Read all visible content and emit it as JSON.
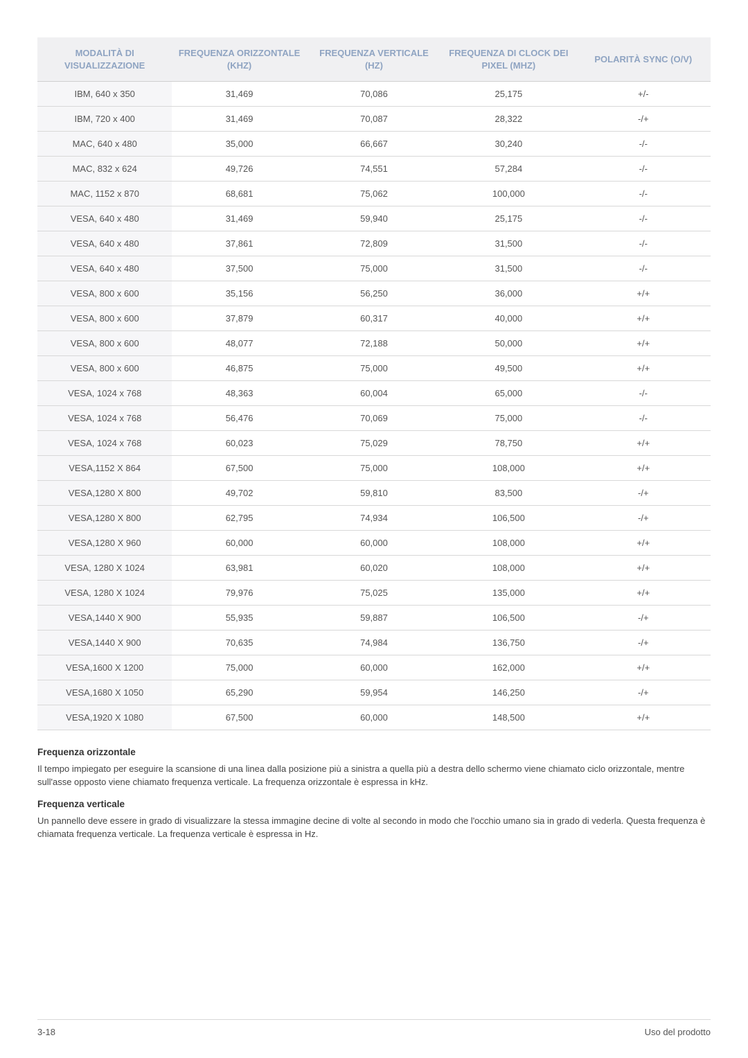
{
  "table": {
    "columns": [
      "MODALITÀ DI VISUALIZZAZIONE",
      "FREQUENZA ORIZZONTALE (KHZ)",
      "FREQUENZA VERTICALE (HZ)",
      "FREQUENZA DI CLOCK DEI PIXEL (MHZ)",
      "POLARITÀ SYNC (O/V)"
    ],
    "header_text_color": "#8fa4c2",
    "header_bg_color": "#f0f0f2",
    "row_first_col_bg": "#f6f6f8",
    "border_color": "#d8d8d8",
    "rows": [
      [
        "IBM, 640 x 350",
        "31,469",
        "70,086",
        "25,175",
        "+/-"
      ],
      [
        "IBM, 720 x 400",
        "31,469",
        "70,087",
        "28,322",
        "-/+"
      ],
      [
        "MAC, 640 x 480",
        "35,000",
        "66,667",
        "30,240",
        "-/-"
      ],
      [
        "MAC, 832 x 624",
        "49,726",
        "74,551",
        "57,284",
        "-/-"
      ],
      [
        "MAC, 1152 x 870",
        "68,681",
        "75,062",
        "100,000",
        "-/-"
      ],
      [
        "VESA, 640 x 480",
        "31,469",
        "59,940",
        "25,175",
        "-/-"
      ],
      [
        "VESA, 640 x 480",
        "37,861",
        "72,809",
        "31,500",
        "-/-"
      ],
      [
        "VESA, 640 x 480",
        "37,500",
        "75,000",
        "31,500",
        "-/-"
      ],
      [
        "VESA, 800 x 600",
        "35,156",
        "56,250",
        "36,000",
        "+/+"
      ],
      [
        "VESA, 800 x 600",
        "37,879",
        "60,317",
        "40,000",
        "+/+"
      ],
      [
        "VESA, 800 x 600",
        "48,077",
        "72,188",
        "50,000",
        "+/+"
      ],
      [
        "VESA, 800 x 600",
        "46,875",
        "75,000",
        "49,500",
        "+/+"
      ],
      [
        "VESA, 1024 x 768",
        "48,363",
        "60,004",
        "65,000",
        "-/-"
      ],
      [
        "VESA, 1024 x 768",
        "56,476",
        "70,069",
        "75,000",
        "-/-"
      ],
      [
        "VESA, 1024 x 768",
        "60,023",
        "75,029",
        "78,750",
        "+/+"
      ],
      [
        "VESA,1152 X 864",
        "67,500",
        "75,000",
        "108,000",
        "+/+"
      ],
      [
        "VESA,1280 X 800",
        "49,702",
        "59,810",
        "83,500",
        "-/+"
      ],
      [
        "VESA,1280 X 800",
        "62,795",
        "74,934",
        "106,500",
        "-/+"
      ],
      [
        "VESA,1280 X 960",
        "60,000",
        "60,000",
        "108,000",
        "+/+"
      ],
      [
        "VESA, 1280 X 1024",
        "63,981",
        "60,020",
        "108,000",
        "+/+"
      ],
      [
        "VESA, 1280 X 1024",
        "79,976",
        "75,025",
        "135,000",
        "+/+"
      ],
      [
        "VESA,1440 X 900",
        "55,935",
        "59,887",
        "106,500",
        "-/+"
      ],
      [
        "VESA,1440 X 900",
        "70,635",
        "74,984",
        "136,750",
        "-/+"
      ],
      [
        "VESA,1600 X 1200",
        "75,000",
        "60,000",
        "162,000",
        "+/+"
      ],
      [
        "VESA,1680 X 1050",
        "65,290",
        "59,954",
        "146,250",
        "-/+"
      ],
      [
        "VESA,1920 X 1080",
        "67,500",
        "60,000",
        "148,500",
        "+/+"
      ]
    ]
  },
  "sections": [
    {
      "title": "Frequenza orizzontale",
      "body": "Il tempo impiegato per eseguire la scansione di una linea dalla posizione più a sinistra a quella più a destra dello schermo viene chiamato ciclo orizzontale, mentre sull'asse opposto viene chiamato frequenza verticale. La frequenza orizzontale è espressa in kHz."
    },
    {
      "title": "Frequenza verticale",
      "body": "Un pannello deve essere in grado di visualizzare la stessa immagine decine di volte al secondo in modo che l'occhio umano sia in grado di vederla. Questa frequenza è chiamata frequenza verticale. La frequenza verticale è espressa in Hz."
    }
  ],
  "footer": {
    "left": "3-18",
    "right": "Uso del prodotto"
  }
}
